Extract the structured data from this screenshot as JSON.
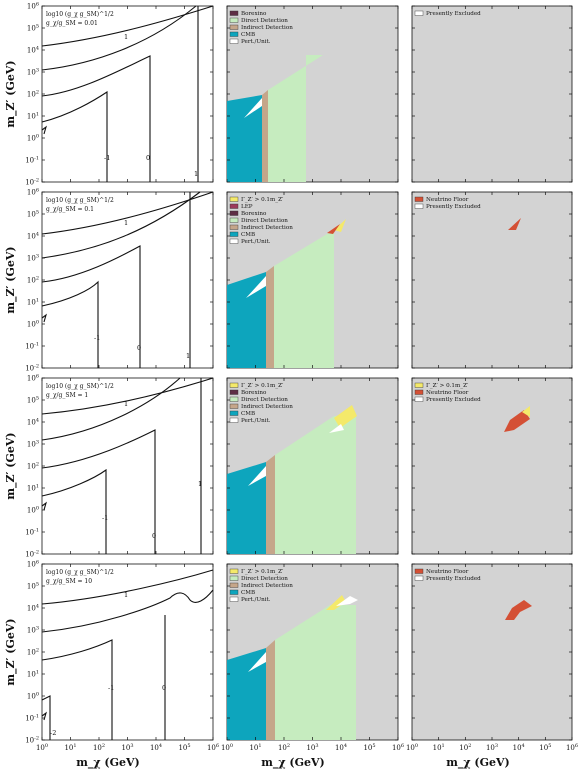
{
  "figure": {
    "xlabel": "m_χ (GeV)",
    "ylabel": "m_Z′ (GeV)",
    "xlim_log10": [
      0,
      6
    ],
    "ylim_log10": [
      -2,
      6
    ],
    "x_tick_exponents": [
      0,
      1,
      2,
      3,
      4,
      5,
      6
    ],
    "y_tick_exponents": [
      -2,
      -1,
      0,
      1,
      2,
      3,
      4,
      5,
      6
    ],
    "tick_base": "10"
  },
  "colors": {
    "borexino": "#5e2f45",
    "direct_detection": "#c6ecbf",
    "indirect_detection": "#c5a68a",
    "cmb": "#0da5bd",
    "perturbative_unitarity": "#ffffff",
    "width": "#f4e96a",
    "lep": "#9c3a5b",
    "neutrino_floor": "#d45035",
    "excluded": "#d3d3d3"
  },
  "legend": {
    "borexino": "Borexino",
    "direct": "Direct Detection",
    "indirect": "Indirect Detection",
    "cmb": "CMB",
    "pert": "Pert./Unit.",
    "lep": "LEP",
    "width": "Γ_Z′ > 0.1m_Z′",
    "nu_floor": "Neutrino Floor",
    "excluded": "Presently Excluded"
  },
  "rows": [
    {
      "ratio_label": "g_χ/g_SM = 0.01",
      "coupling_label": "log10 (g_χ g_SM)^1/2",
      "contour_levels": [
        "1",
        "0",
        "-1"
      ]
    },
    {
      "ratio_label": "g_χ/g_SM = 0.1",
      "coupling_label": "log10 (g_χ g_SM)^1/2",
      "contour_levels": [
        "1",
        "0",
        "-1"
      ]
    },
    {
      "ratio_label": "g_χ/g_SM = 1",
      "coupling_label": "log10 (g_χ g_SM)^1/2",
      "contour_levels": [
        "1",
        "0",
        "-1"
      ]
    },
    {
      "ratio_label": "g_χ/g_SM = 10",
      "coupling_label": "log10 (g_χ g_SM)^1/2",
      "contour_levels": [
        "1",
        "0",
        "-1",
        "-2"
      ]
    }
  ],
  "chart_data": [
    {
      "type": "contour",
      "row": 1,
      "column": "coupling contours",
      "levels": [
        -1,
        0,
        1
      ]
    },
    {
      "type": "area",
      "row": 1,
      "column": "constraints",
      "series": [
        "Borexino",
        "Direct Detection",
        "Indirect Detection",
        "CMB",
        "Pert./Unit."
      ]
    },
    {
      "type": "area",
      "row": 1,
      "column": "outlook",
      "series": [
        "Presently Excluded"
      ]
    },
    {
      "type": "contour",
      "row": 2,
      "column": "coupling contours",
      "levels": [
        -1,
        0,
        1
      ]
    },
    {
      "type": "area",
      "row": 2,
      "column": "constraints",
      "series": [
        "Γ_Z′ > 0.1m_Z′",
        "LEP",
        "Borexino",
        "Direct Detection",
        "Indirect Detection",
        "CMB",
        "Pert./Unit."
      ]
    },
    {
      "type": "area",
      "row": 2,
      "column": "outlook",
      "series": [
        "Neutrino Floor",
        "Presently Excluded"
      ]
    },
    {
      "type": "contour",
      "row": 3,
      "column": "coupling contours",
      "levels": [
        -1,
        0,
        1
      ]
    },
    {
      "type": "area",
      "row": 3,
      "column": "constraints",
      "series": [
        "Γ_Z′ > 0.1m_Z′",
        "Borexino",
        "Direct Detection",
        "Indirect Detection",
        "CMB",
        "Pert./Unit."
      ]
    },
    {
      "type": "area",
      "row": 3,
      "column": "outlook",
      "series": [
        "Γ_Z′ > 0.1m_Z′",
        "Neutrino Floor",
        "Presently Excluded"
      ]
    },
    {
      "type": "contour",
      "row": 4,
      "column": "coupling contours",
      "levels": [
        -2,
        -1,
        0,
        1
      ]
    },
    {
      "type": "area",
      "row": 4,
      "column": "constraints",
      "series": [
        "Γ_Z′ > 0.1m_Z′",
        "Direct Detection",
        "Indirect Detection",
        "CMB",
        "Pert./Unit."
      ]
    },
    {
      "type": "area",
      "row": 4,
      "column": "outlook",
      "series": [
        "Neutrino Floor",
        "Presently Excluded"
      ]
    }
  ]
}
